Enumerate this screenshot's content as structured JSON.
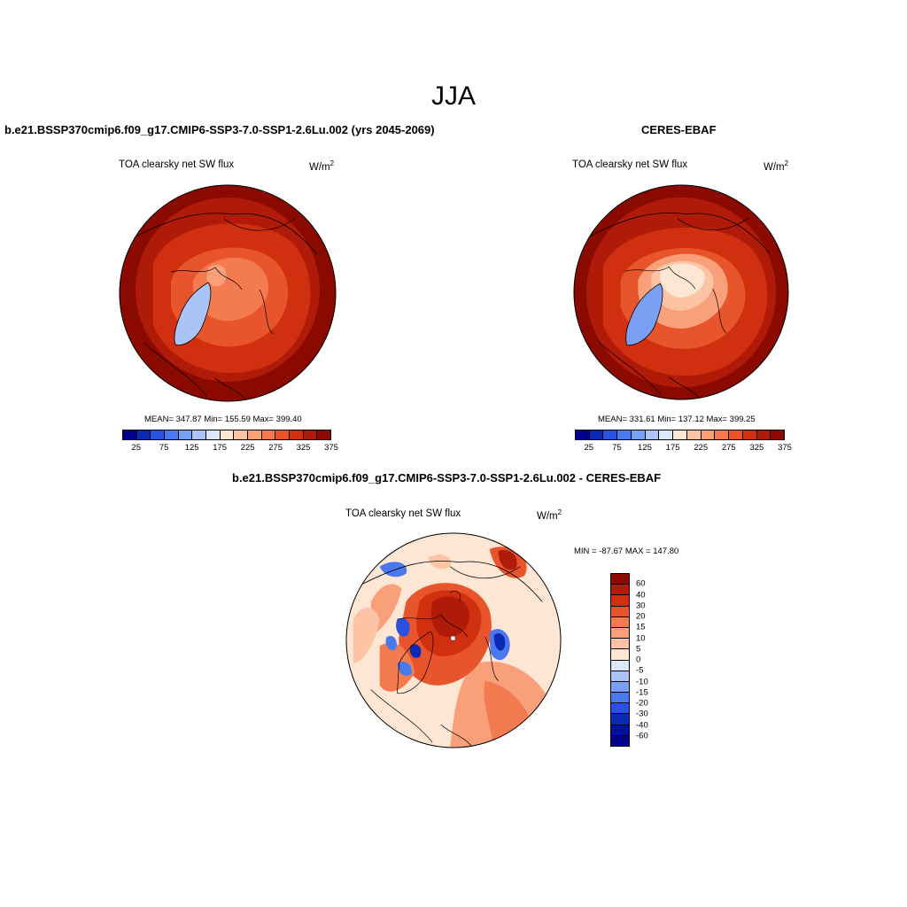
{
  "season": "JJA",
  "panels": {
    "model": {
      "title": "b.e21.BSSP370cmip6.f09_g17.CMIP6-SSP3-7.0-SSP1-2.6Lu.002 (yrs 2045-2069)",
      "variable": "TOA clearsky net SW flux",
      "units": "W/m",
      "units_exp": "2",
      "stats": "MEAN= 347.87  Min= 155.59  Max= 399.40"
    },
    "obs": {
      "title": "CERES-EBAF",
      "variable": "TOA clearsky net SW flux",
      "units": "W/m",
      "units_exp": "2",
      "stats": "MEAN= 331.61  Min= 137.12  Max= 399.25"
    },
    "diff": {
      "title": "b.e21.BSSP370cmip6.f09_g17.CMIP6-SSP3-7.0-SSP1-2.6Lu.002 - CERES-EBAF",
      "variable": "TOA clearsky net SW flux",
      "units": "W/m",
      "units_exp": "2",
      "minmax": "MIN = -87.67 MAX = 147.80"
    }
  },
  "abs_colorbar": {
    "colors": [
      "#00008c",
      "#0a2ab4",
      "#2a52e0",
      "#4a78ee",
      "#7aa0f4",
      "#aac4f8",
      "#dce8fa",
      "#fde6d4",
      "#fcc4a4",
      "#f9a07a",
      "#f47a50",
      "#e8542c",
      "#d03010",
      "#b01a08",
      "#8a0a00"
    ],
    "tick_labels": [
      "25",
      "75",
      "125",
      "175",
      "225",
      "275",
      "325",
      "375"
    ]
  },
  "diff_colorbar": {
    "colors": [
      "#8a0a00",
      "#b01a08",
      "#d03010",
      "#e8542c",
      "#f47a50",
      "#f9a07a",
      "#fcc4a4",
      "#fde6d4",
      "#dce8fa",
      "#aac4f8",
      "#7aa0f4",
      "#4a78ee",
      "#2a52e0",
      "#0a2ab4",
      "#00119a",
      "#00008c"
    ],
    "tick_labels": [
      "60",
      "40",
      "30",
      "20",
      "15",
      "10",
      "5",
      "0",
      "-5",
      "-10",
      "-15",
      "-20",
      "-30",
      "-40",
      "-60"
    ]
  }
}
